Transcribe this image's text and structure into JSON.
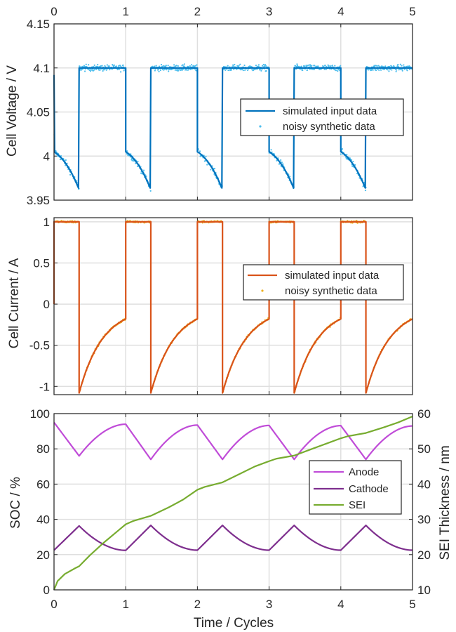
{
  "chart_data": [
    {
      "type": "line",
      "ylabel": "Cell Voltage  /  V",
      "xlim": [
        0,
        5
      ],
      "ylim": [
        3.95,
        4.15
      ],
      "xticks": [
        "0",
        "1",
        "2",
        "3",
        "4",
        "5"
      ],
      "yticks": [
        "3.95",
        "4",
        "4.05",
        "4.1",
        "4.15"
      ],
      "grid": true,
      "legend_position": "right",
      "series": [
        {
          "name": "simulated input data",
          "color": "#0072BD",
          "description_points": {
            "charge_plateau": 4.1,
            "discharge_start": 4.005,
            "discharge_end": 3.962,
            "initial": 4.092
          }
        },
        {
          "name": "noisy synthetic data",
          "color": "#4DBEEE",
          "style": "markers"
        }
      ]
    },
    {
      "type": "line",
      "ylabel": "Cell Current  /  A",
      "xlim": [
        0,
        5
      ],
      "ylim": [
        -1.1,
        1.05
      ],
      "xticks": [],
      "yticks": [
        "-1",
        "-0.5",
        "0",
        "0.5",
        "1"
      ],
      "grid": true,
      "legend_position": "right",
      "series": [
        {
          "name": "simulated input data",
          "color": "#D95319",
          "description_points": {
            "charge_current": 1,
            "discharge_start": -1.08,
            "discharge_end": -0.18
          }
        },
        {
          "name": "noisy synthetic data",
          "color": "#EDB120",
          "style": "markers"
        }
      ]
    },
    {
      "type": "line",
      "ylabel": "SOC  /  %",
      "y2label": "SEI Thickness  /  nm",
      "xlabel": "Time  /  Cycles",
      "xlim": [
        0,
        5
      ],
      "ylim": [
        0,
        100
      ],
      "y2lim": [
        10,
        60
      ],
      "xticks": [
        "0",
        "1",
        "2",
        "3",
        "4",
        "5"
      ],
      "yticks": [
        "0",
        "20",
        "40",
        "60",
        "80",
        "100"
      ],
      "y2ticks": [
        "10",
        "20",
        "30",
        "40",
        "50",
        "60"
      ],
      "grid": true,
      "legend_position": "right",
      "series": [
        {
          "name": "Anode",
          "color": "#C04CD8",
          "axis": "left",
          "x": [
            0,
            0.35,
            1,
            1.35,
            2,
            2.35,
            3,
            3.35,
            4,
            4.35,
            5
          ],
          "y": [
            95,
            76,
            94,
            74,
            93.5,
            74,
            93.3,
            74,
            93.2,
            74,
            93
          ]
        },
        {
          "name": "Cathode",
          "color": "#7E2F8E",
          "axis": "left",
          "x": [
            0,
            0.35,
            1,
            1.35,
            2,
            2.35,
            3,
            3.35,
            4,
            4.35,
            5
          ],
          "y": [
            22.5,
            36.3,
            22.4,
            36.6,
            22.5,
            36.6,
            22.5,
            36.6,
            22.5,
            36.6,
            22.5
          ]
        },
        {
          "name": "SEI",
          "color": "#77AC30",
          "axis": "right",
          "x": [
            0,
            0.05,
            0.15,
            0.3,
            0.35,
            0.5,
            0.7,
            0.9,
            1.0,
            1.1,
            1.35,
            1.6,
            1.8,
            2.0,
            2.1,
            2.35,
            2.6,
            2.8,
            3.0,
            3.1,
            3.35,
            3.6,
            3.8,
            4.0,
            4.1,
            4.35,
            4.6,
            4.8,
            5.0
          ],
          "y": [
            10,
            12.5,
            14.5,
            16.2,
            16.7,
            19.8,
            23.5,
            26.9,
            28.6,
            29.5,
            31,
            33.4,
            35.6,
            38.4,
            39.2,
            40.5,
            43,
            45,
            46.5,
            47.2,
            48.1,
            50,
            51.5,
            53,
            53.6,
            54.5,
            56.1,
            57.5,
            59.2
          ]
        }
      ]
    }
  ]
}
